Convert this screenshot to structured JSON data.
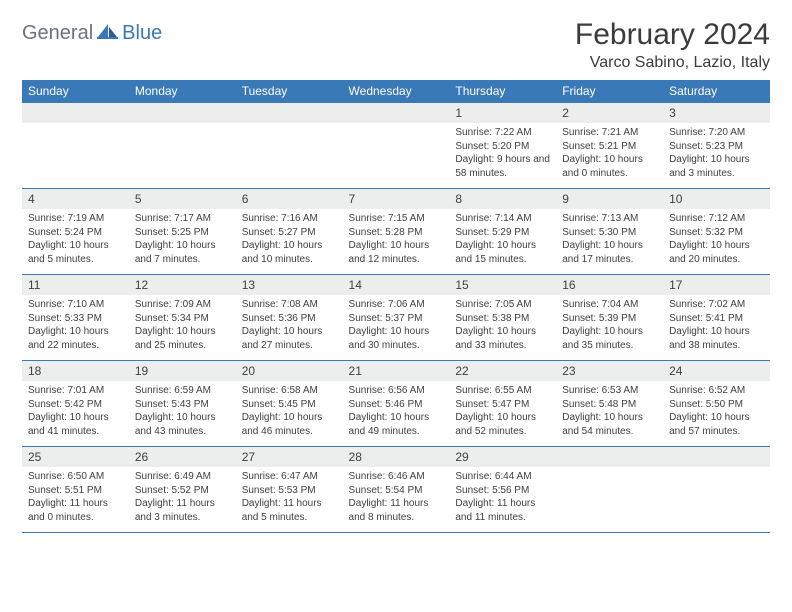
{
  "logo": {
    "part1": "General",
    "part2": "Blue"
  },
  "title": "February 2024",
  "location": "Varco Sabino, Lazio, Italy",
  "colors": {
    "header_bg": "#3a79b7",
    "header_text": "#ffffff",
    "daynum_bg": "#eceded",
    "text": "#404040",
    "border": "#3a79b7",
    "logo_gray": "#6b7280",
    "logo_blue": "#3a79b7",
    "page_bg": "#ffffff"
  },
  "weekdays": [
    "Sunday",
    "Monday",
    "Tuesday",
    "Wednesday",
    "Thursday",
    "Friday",
    "Saturday"
  ],
  "weeks": [
    [
      null,
      null,
      null,
      null,
      {
        "day": "1",
        "sunrise": "Sunrise: 7:22 AM",
        "sunset": "Sunset: 5:20 PM",
        "daylight": "Daylight: 9 hours and 58 minutes."
      },
      {
        "day": "2",
        "sunrise": "Sunrise: 7:21 AM",
        "sunset": "Sunset: 5:21 PM",
        "daylight": "Daylight: 10 hours and 0 minutes."
      },
      {
        "day": "3",
        "sunrise": "Sunrise: 7:20 AM",
        "sunset": "Sunset: 5:23 PM",
        "daylight": "Daylight: 10 hours and 3 minutes."
      }
    ],
    [
      {
        "day": "4",
        "sunrise": "Sunrise: 7:19 AM",
        "sunset": "Sunset: 5:24 PM",
        "daylight": "Daylight: 10 hours and 5 minutes."
      },
      {
        "day": "5",
        "sunrise": "Sunrise: 7:17 AM",
        "sunset": "Sunset: 5:25 PM",
        "daylight": "Daylight: 10 hours and 7 minutes."
      },
      {
        "day": "6",
        "sunrise": "Sunrise: 7:16 AM",
        "sunset": "Sunset: 5:27 PM",
        "daylight": "Daylight: 10 hours and 10 minutes."
      },
      {
        "day": "7",
        "sunrise": "Sunrise: 7:15 AM",
        "sunset": "Sunset: 5:28 PM",
        "daylight": "Daylight: 10 hours and 12 minutes."
      },
      {
        "day": "8",
        "sunrise": "Sunrise: 7:14 AM",
        "sunset": "Sunset: 5:29 PM",
        "daylight": "Daylight: 10 hours and 15 minutes."
      },
      {
        "day": "9",
        "sunrise": "Sunrise: 7:13 AM",
        "sunset": "Sunset: 5:30 PM",
        "daylight": "Daylight: 10 hours and 17 minutes."
      },
      {
        "day": "10",
        "sunrise": "Sunrise: 7:12 AM",
        "sunset": "Sunset: 5:32 PM",
        "daylight": "Daylight: 10 hours and 20 minutes."
      }
    ],
    [
      {
        "day": "11",
        "sunrise": "Sunrise: 7:10 AM",
        "sunset": "Sunset: 5:33 PM",
        "daylight": "Daylight: 10 hours and 22 minutes."
      },
      {
        "day": "12",
        "sunrise": "Sunrise: 7:09 AM",
        "sunset": "Sunset: 5:34 PM",
        "daylight": "Daylight: 10 hours and 25 minutes."
      },
      {
        "day": "13",
        "sunrise": "Sunrise: 7:08 AM",
        "sunset": "Sunset: 5:36 PM",
        "daylight": "Daylight: 10 hours and 27 minutes."
      },
      {
        "day": "14",
        "sunrise": "Sunrise: 7:06 AM",
        "sunset": "Sunset: 5:37 PM",
        "daylight": "Daylight: 10 hours and 30 minutes."
      },
      {
        "day": "15",
        "sunrise": "Sunrise: 7:05 AM",
        "sunset": "Sunset: 5:38 PM",
        "daylight": "Daylight: 10 hours and 33 minutes."
      },
      {
        "day": "16",
        "sunrise": "Sunrise: 7:04 AM",
        "sunset": "Sunset: 5:39 PM",
        "daylight": "Daylight: 10 hours and 35 minutes."
      },
      {
        "day": "17",
        "sunrise": "Sunrise: 7:02 AM",
        "sunset": "Sunset: 5:41 PM",
        "daylight": "Daylight: 10 hours and 38 minutes."
      }
    ],
    [
      {
        "day": "18",
        "sunrise": "Sunrise: 7:01 AM",
        "sunset": "Sunset: 5:42 PM",
        "daylight": "Daylight: 10 hours and 41 minutes."
      },
      {
        "day": "19",
        "sunrise": "Sunrise: 6:59 AM",
        "sunset": "Sunset: 5:43 PM",
        "daylight": "Daylight: 10 hours and 43 minutes."
      },
      {
        "day": "20",
        "sunrise": "Sunrise: 6:58 AM",
        "sunset": "Sunset: 5:45 PM",
        "daylight": "Daylight: 10 hours and 46 minutes."
      },
      {
        "day": "21",
        "sunrise": "Sunrise: 6:56 AM",
        "sunset": "Sunset: 5:46 PM",
        "daylight": "Daylight: 10 hours and 49 minutes."
      },
      {
        "day": "22",
        "sunrise": "Sunrise: 6:55 AM",
        "sunset": "Sunset: 5:47 PM",
        "daylight": "Daylight: 10 hours and 52 minutes."
      },
      {
        "day": "23",
        "sunrise": "Sunrise: 6:53 AM",
        "sunset": "Sunset: 5:48 PM",
        "daylight": "Daylight: 10 hours and 54 minutes."
      },
      {
        "day": "24",
        "sunrise": "Sunrise: 6:52 AM",
        "sunset": "Sunset: 5:50 PM",
        "daylight": "Daylight: 10 hours and 57 minutes."
      }
    ],
    [
      {
        "day": "25",
        "sunrise": "Sunrise: 6:50 AM",
        "sunset": "Sunset: 5:51 PM",
        "daylight": "Daylight: 11 hours and 0 minutes."
      },
      {
        "day": "26",
        "sunrise": "Sunrise: 6:49 AM",
        "sunset": "Sunset: 5:52 PM",
        "daylight": "Daylight: 11 hours and 3 minutes."
      },
      {
        "day": "27",
        "sunrise": "Sunrise: 6:47 AM",
        "sunset": "Sunset: 5:53 PM",
        "daylight": "Daylight: 11 hours and 5 minutes."
      },
      {
        "day": "28",
        "sunrise": "Sunrise: 6:46 AM",
        "sunset": "Sunset: 5:54 PM",
        "daylight": "Daylight: 11 hours and 8 minutes."
      },
      {
        "day": "29",
        "sunrise": "Sunrise: 6:44 AM",
        "sunset": "Sunset: 5:56 PM",
        "daylight": "Daylight: 11 hours and 11 minutes."
      },
      null,
      null
    ]
  ]
}
